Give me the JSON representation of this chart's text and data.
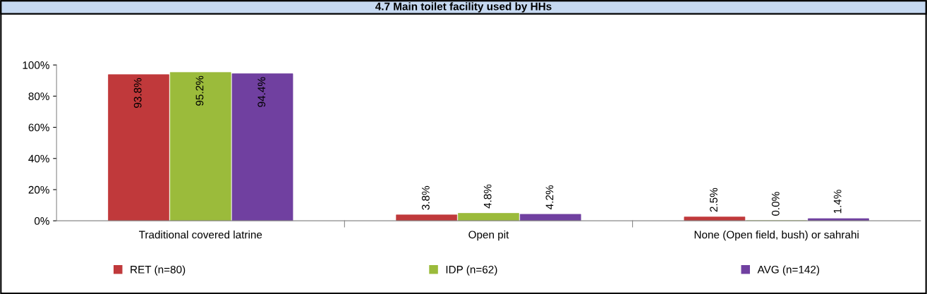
{
  "chart_data": {
    "type": "bar",
    "title": "4.7 Main toilet facility used by HHs",
    "categories": [
      "Traditional covered latrine",
      "Open pit",
      "None (Open field, bush) or sahrahi"
    ],
    "series": [
      {
        "name": "RET (n=80)",
        "color": "#c0393b",
        "values": [
          93.8,
          3.8,
          2.5
        ],
        "value_labels": [
          "93.8%",
          "3.8%",
          "2.5%"
        ]
      },
      {
        "name": "IDP (n=62)",
        "color": "#9bbb3b",
        "values": [
          95.2,
          4.8,
          0.0
        ],
        "value_labels": [
          "95.2%",
          "4.8%",
          "0.0%"
        ]
      },
      {
        "name": "AVG (n=142)",
        "color": "#7040a0",
        "values": [
          94.4,
          4.2,
          1.4
        ],
        "value_labels": [
          "94.4%",
          "4.2%",
          "1.4%"
        ]
      }
    ],
    "ylim": [
      0,
      100
    ],
    "yticks": [
      {
        "value": 0,
        "label": "0%"
      },
      {
        "value": 20,
        "label": "20%"
      },
      {
        "value": 40,
        "label": "40%"
      },
      {
        "value": 60,
        "label": "60%"
      },
      {
        "value": 80,
        "label": "80%"
      },
      {
        "value": 100,
        "label": "100%"
      }
    ],
    "grid": false,
    "legend": "bottom"
  }
}
